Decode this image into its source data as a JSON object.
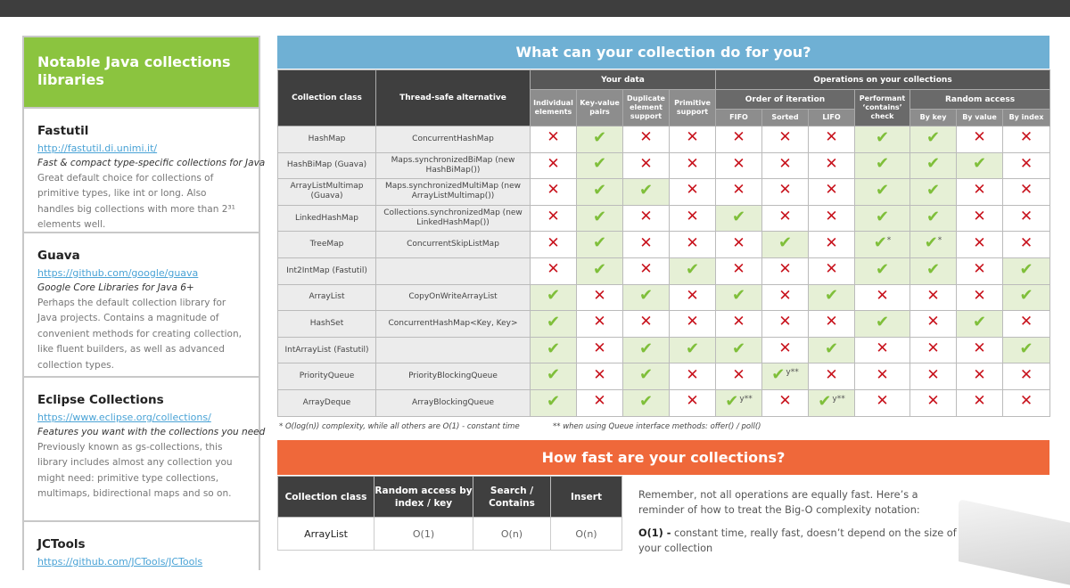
{
  "sidebar": {
    "title": "Notable Java collections libraries",
    "libraries": [
      {
        "name": "Fastutil",
        "url": "http://fastutil.di.unimi.it/",
        "tagline": "Fast & compact type-specific collections for Java",
        "description": "Great default choice for collections of primitive types, like int or long. Also handles big collections with more than 2³¹ elements well."
      },
      {
        "name": "Guava",
        "url": "https://github.com/google/guava",
        "tagline": "Google Core Libraries for Java 6+",
        "description": "Perhaps the default collection library for Java projects. Contains a magnitude of convenient methods for creating collection, like fluent builders, as well as advanced collection types."
      },
      {
        "name": "Eclipse Collections",
        "url": "https://www.eclipse.org/collections/",
        "tagline": "Features you want with the collections you need",
        "description": "Previously known as gs-collections, this library includes almost any collection you might need: primitive type collections, multimaps, bidirectional maps and so on."
      },
      {
        "name": "JCTools",
        "url": "https://github.com/JCTools/JCTools"
      }
    ]
  },
  "capabilities": {
    "title": "What can your collection do for you?",
    "headers": {
      "collection_class": "Collection class",
      "thread_safe": "Thread-safe alternative",
      "your_data": "Your data",
      "operations": "Operations on your collections",
      "individual": "Individual elements",
      "key_value": "Key-value pairs",
      "duplicate": "Duplicate element support",
      "primitive": "Primitive support",
      "order": "Order of iteration",
      "fifo": "FIFO",
      "sorted": "Sorted",
      "lifo": "LIFO",
      "contains": "Performant ‘contains’ check",
      "random": "Random access",
      "by_key": "By key",
      "by_value": "By value",
      "by_index": "By index"
    },
    "legend": {
      "yes": "check-icon",
      "no": "cross-icon",
      "colors": {
        "yes": "#7fbf3a",
        "no": "#c8141e",
        "yes_bg": "#e6f0d6"
      }
    },
    "rows": [
      {
        "cls": "HashMap",
        "alt": "ConcurrentHashMap",
        "marks": [
          "n",
          "y",
          "n",
          "n",
          "n",
          "n",
          "n",
          "y",
          "y",
          "n",
          "n"
        ]
      },
      {
        "cls": "HashBiMap (Guava)",
        "alt": "Maps.synchronizedBiMap (new HashBiMap())",
        "marks": [
          "n",
          "y",
          "n",
          "n",
          "n",
          "n",
          "n",
          "y",
          "y",
          "y",
          "n"
        ]
      },
      {
        "cls": "ArrayListMultimap (Guava)",
        "alt": "Maps.synchronizedMultiMap (new ArrayListMultimap())",
        "marks": [
          "n",
          "y",
          "y",
          "n",
          "n",
          "n",
          "n",
          "y",
          "y",
          "n",
          "n"
        ]
      },
      {
        "cls": "LinkedHashMap",
        "alt": "Collections.synchronizedMap (new LinkedHashMap())",
        "marks": [
          "n",
          "y",
          "n",
          "n",
          "y",
          "n",
          "n",
          "y",
          "y",
          "n",
          "n"
        ]
      },
      {
        "cls": "TreeMap",
        "alt": "ConcurrentSkipListMap",
        "marks": [
          "n",
          "y",
          "n",
          "n",
          "n",
          "y",
          "n",
          "y*",
          "y*",
          "n",
          "n"
        ]
      },
      {
        "cls": "Int2IntMap (Fastutil)",
        "alt": "",
        "marks": [
          "n",
          "y",
          "n",
          "y",
          "n",
          "n",
          "n",
          "y",
          "y",
          "n",
          "y"
        ]
      },
      {
        "cls": "ArrayList",
        "alt": "CopyOnWriteArrayList",
        "marks": [
          "y",
          "n",
          "y",
          "n",
          "y",
          "n",
          "y",
          "n",
          "n",
          "n",
          "y"
        ]
      },
      {
        "cls": "HashSet",
        "alt": "ConcurrentHashMap<Key, Key>",
        "marks": [
          "y",
          "n",
          "n",
          "n",
          "n",
          "n",
          "n",
          "y",
          "n",
          "y",
          "n"
        ]
      },
      {
        "cls": "IntArrayList (Fastutil)",
        "alt": "",
        "marks": [
          "y",
          "n",
          "y",
          "y",
          "y",
          "n",
          "y",
          "n",
          "n",
          "n",
          "y"
        ]
      },
      {
        "cls": "PriorityQueue",
        "alt": "PriorityBlockingQueue",
        "marks": [
          "y",
          "n",
          "y",
          "n",
          "n",
          "y**",
          "n",
          "n",
          "n",
          "n",
          "n"
        ]
      },
      {
        "cls": "ArrayDeque",
        "alt": "ArrayBlockingQueue",
        "marks": [
          "y",
          "n",
          "y",
          "n",
          "y**",
          "n",
          "y**",
          "n",
          "n",
          "n",
          "n"
        ]
      }
    ],
    "footnotes": [
      "* O(log(n)) complexity, while all others are O(1) - constant time",
      "** when using Queue interface methods: offer() / poll()"
    ]
  },
  "speed": {
    "title": "How fast are your collections?",
    "headers": [
      "Collection class",
      "Random access by index / key",
      "Search / Contains",
      "Insert"
    ],
    "rows": [
      {
        "cls": "ArrayList",
        "random": "O(1)",
        "search": "O(n)",
        "insert": "O(n)"
      }
    ],
    "note_intro": "Remember, not all operations are equally fast. Here’s a reminder of how to treat the Big-O complexity notation:",
    "o1_label": "O(1) -",
    "o1_text": " constant time, really fast, doesn’t depend on the size of your collection"
  }
}
